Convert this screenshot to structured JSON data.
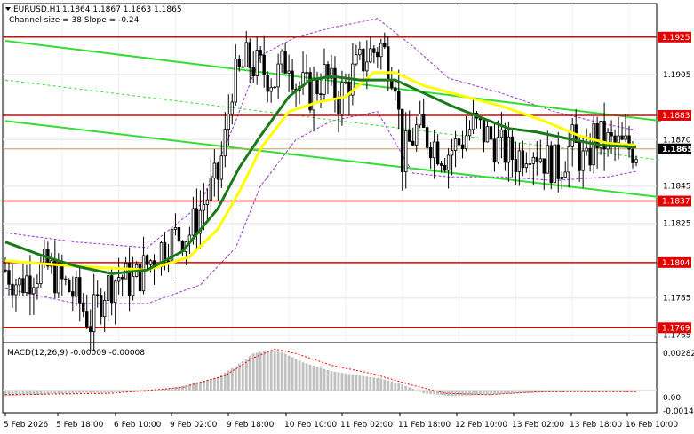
{
  "header": {
    "symbol": "EURUSD,H1",
    "ohlc": "1.1864 1.1867 1.1863 1.1865",
    "channel": "Channel size = 38 Slope = -0.24"
  },
  "colors": {
    "candle": "#000000",
    "level": "#e00000",
    "level_label": "#e00000",
    "ma_fast": "#ffff00",
    "ma_slow": "#1a7a1a",
    "channel": "#33dd33",
    "envelope": "#9933cc",
    "macd_hist": "#c0c0c0",
    "macd_signal": "#ff0000",
    "grid": "#e6e6e6"
  },
  "chart_data": [
    {
      "type": "candlestick",
      "title": "EURUSD,H1",
      "ylim": [
        1.1762,
        1.1943
      ],
      "price_ticks": [
        "1.1905",
        "1.1870",
        "1.1845",
        "1.1825",
        "1.1785",
        "1.1765"
      ],
      "x_labels": [
        "5 Feb 2026",
        "5 Feb 18:00",
        "6 Feb 10:00",
        "9 Feb 02:00",
        "9 Feb 18:00",
        "10 Feb 10:00",
        "11 Feb 02:00",
        "11 Feb 18:00",
        "12 Feb 10:00",
        "13 Feb 02:00",
        "13 Feb 18:00",
        "16 Feb 10:00"
      ],
      "levels": [
        {
          "label": "1.1925",
          "value": 1.1925
        },
        {
          "label": "1.1883",
          "value": 1.1883
        },
        {
          "label": "1.1837",
          "value": 1.1837
        },
        {
          "label": "1.1804",
          "value": 1.1804
        },
        {
          "label": "1.1769",
          "value": 1.1769
        }
      ],
      "current_price": {
        "label": "1.1865",
        "value": 1.1865
      },
      "close_path": [
        [
          0,
          1.18
        ],
        [
          4,
          1.1792
        ],
        [
          8,
          1.1799
        ],
        [
          12,
          1.1801
        ],
        [
          16,
          1.1793
        ],
        [
          20,
          1.1786
        ],
        [
          24,
          1.1772
        ],
        [
          28,
          1.179
        ],
        [
          32,
          1.1797
        ],
        [
          36,
          1.1793
        ],
        [
          40,
          1.1803
        ],
        [
          44,
          1.1812
        ],
        [
          48,
          1.1818
        ],
        [
          52,
          1.182
        ],
        [
          56,
          1.1836
        ],
        [
          60,
          1.185
        ],
        [
          62,
          1.187
        ],
        [
          64,
          1.19
        ],
        [
          66,
          1.1905
        ],
        [
          68,
          1.1912
        ],
        [
          72,
          1.1908
        ],
        [
          76,
          1.1902
        ],
        [
          80,
          1.1915
        ],
        [
          82,
          1.19
        ],
        [
          86,
          1.1895
        ],
        [
          90,
          1.1904
        ],
        [
          94,
          1.1892
        ],
        [
          98,
          1.1905
        ],
        [
          102,
          1.1915
        ],
        [
          106,
          1.192
        ],
        [
          110,
          1.1905
        ],
        [
          112,
          1.186
        ],
        [
          116,
          1.1875
        ],
        [
          120,
          1.187
        ],
        [
          124,
          1.1862
        ],
        [
          128,
          1.1868
        ],
        [
          132,
          1.1878
        ],
        [
          136,
          1.1872
        ],
        [
          140,
          1.1865
        ],
        [
          144,
          1.186
        ],
        [
          148,
          1.1868
        ],
        [
          152,
          1.186
        ],
        [
          156,
          1.1855
        ],
        [
          160,
          1.1868
        ],
        [
          164,
          1.1855
        ],
        [
          166,
          1.1872
        ],
        [
          170,
          1.1868
        ],
        [
          174,
          1.1866
        ],
        [
          178,
          1.1865
        ]
      ],
      "ma_fast": [
        [
          0,
          1.1805
        ],
        [
          20,
          1.1802
        ],
        [
          40,
          1.18
        ],
        [
          52,
          1.1807
        ],
        [
          60,
          1.1822
        ],
        [
          66,
          1.1842
        ],
        [
          72,
          1.1865
        ],
        [
          80,
          1.1885
        ],
        [
          88,
          1.189
        ],
        [
          96,
          1.1893
        ],
        [
          104,
          1.1906
        ],
        [
          110,
          1.1906
        ],
        [
          118,
          1.1899
        ],
        [
          130,
          1.1893
        ],
        [
          140,
          1.1888
        ],
        [
          152,
          1.188
        ],
        [
          162,
          1.1872
        ],
        [
          170,
          1.1868
        ],
        [
          178,
          1.1867
        ]
      ],
      "ma_slow": [
        [
          0,
          1.1815
        ],
        [
          10,
          1.1808
        ],
        [
          20,
          1.1802
        ],
        [
          30,
          1.1798
        ],
        [
          40,
          1.18
        ],
        [
          50,
          1.181
        ],
        [
          60,
          1.1833
        ],
        [
          66,
          1.1855
        ],
        [
          72,
          1.1872
        ],
        [
          80,
          1.1893
        ],
        [
          86,
          1.1902
        ],
        [
          92,
          1.1904
        ],
        [
          100,
          1.1902
        ],
        [
          110,
          1.1902
        ],
        [
          118,
          1.1895
        ],
        [
          126,
          1.1888
        ],
        [
          134,
          1.1882
        ],
        [
          142,
          1.1876
        ],
        [
          150,
          1.1874
        ],
        [
          160,
          1.187
        ],
        [
          168,
          1.1867
        ],
        [
          178,
          1.1866
        ]
      ],
      "channel_upper": [
        [
          0,
          1.1923
        ],
        [
          185,
          1.188
        ]
      ],
      "channel_lower": [
        [
          0,
          1.188
        ],
        [
          185,
          1.1839
        ]
      ],
      "channel_mid": [
        [
          0,
          1.1902
        ],
        [
          185,
          1.1859
        ]
      ],
      "envelope_upper": [
        [
          0,
          1.182
        ],
        [
          20,
          1.1815
        ],
        [
          40,
          1.1812
        ],
        [
          55,
          1.1835
        ],
        [
          65,
          1.188
        ],
        [
          72,
          1.1915
        ],
        [
          82,
          1.1925
        ],
        [
          92,
          1.193
        ],
        [
          105,
          1.1935
        ],
        [
          115,
          1.192
        ],
        [
          125,
          1.1903
        ],
        [
          140,
          1.1895
        ],
        [
          155,
          1.1885
        ],
        [
          170,
          1.1878
        ],
        [
          178,
          1.1875
        ]
      ],
      "envelope_lower": [
        [
          0,
          1.179
        ],
        [
          20,
          1.1782
        ],
        [
          40,
          1.1782
        ],
        [
          55,
          1.1792
        ],
        [
          65,
          1.1812
        ],
        [
          72,
          1.1845
        ],
        [
          82,
          1.187
        ],
        [
          92,
          1.188
        ],
        [
          105,
          1.1885
        ],
        [
          115,
          1.1852
        ],
        [
          125,
          1.185
        ],
        [
          140,
          1.185
        ],
        [
          155,
          1.1848
        ],
        [
          170,
          1.185
        ],
        [
          178,
          1.1853
        ]
      ]
    },
    {
      "type": "bar",
      "title": "MACD(12,26,9) -0.00009 -0.00008",
      "ylim": [
        -0.0014,
        0.003
      ],
      "y_ticks": [
        "0.00282",
        "0.00",
        "-0.00140"
      ],
      "histogram": [
        [
          0,
          -0.0004
        ],
        [
          20,
          -0.0002
        ],
        [
          40,
          -0.0001
        ],
        [
          50,
          0.0003
        ],
        [
          60,
          0.0009
        ],
        [
          66,
          0.0018
        ],
        [
          70,
          0.0025
        ],
        [
          74,
          0.0027
        ],
        [
          78,
          0.0026
        ],
        [
          84,
          0.0019
        ],
        [
          92,
          0.0013
        ],
        [
          100,
          0.001
        ],
        [
          106,
          0.0008
        ],
        [
          112,
          0.0004
        ],
        [
          118,
          -0.0002
        ],
        [
          126,
          -0.0004
        ],
        [
          136,
          -0.0003
        ],
        [
          146,
          -0.0002
        ],
        [
          156,
          -0.0001
        ],
        [
          166,
          -0.0001
        ],
        [
          178,
          -0.0001
        ]
      ],
      "signal": [
        [
          0,
          -0.0003
        ],
        [
          30,
          -0.0002
        ],
        [
          50,
          0.0002
        ],
        [
          62,
          0.001
        ],
        [
          70,
          0.0022
        ],
        [
          76,
          0.0028
        ],
        [
          82,
          0.0025
        ],
        [
          92,
          0.0017
        ],
        [
          104,
          0.0011
        ],
        [
          114,
          0.0004
        ],
        [
          124,
          -0.0002
        ],
        [
          136,
          -0.0003
        ],
        [
          150,
          -0.0001
        ],
        [
          166,
          -0.0001
        ],
        [
          178,
          -0.0001
        ]
      ]
    }
  ]
}
